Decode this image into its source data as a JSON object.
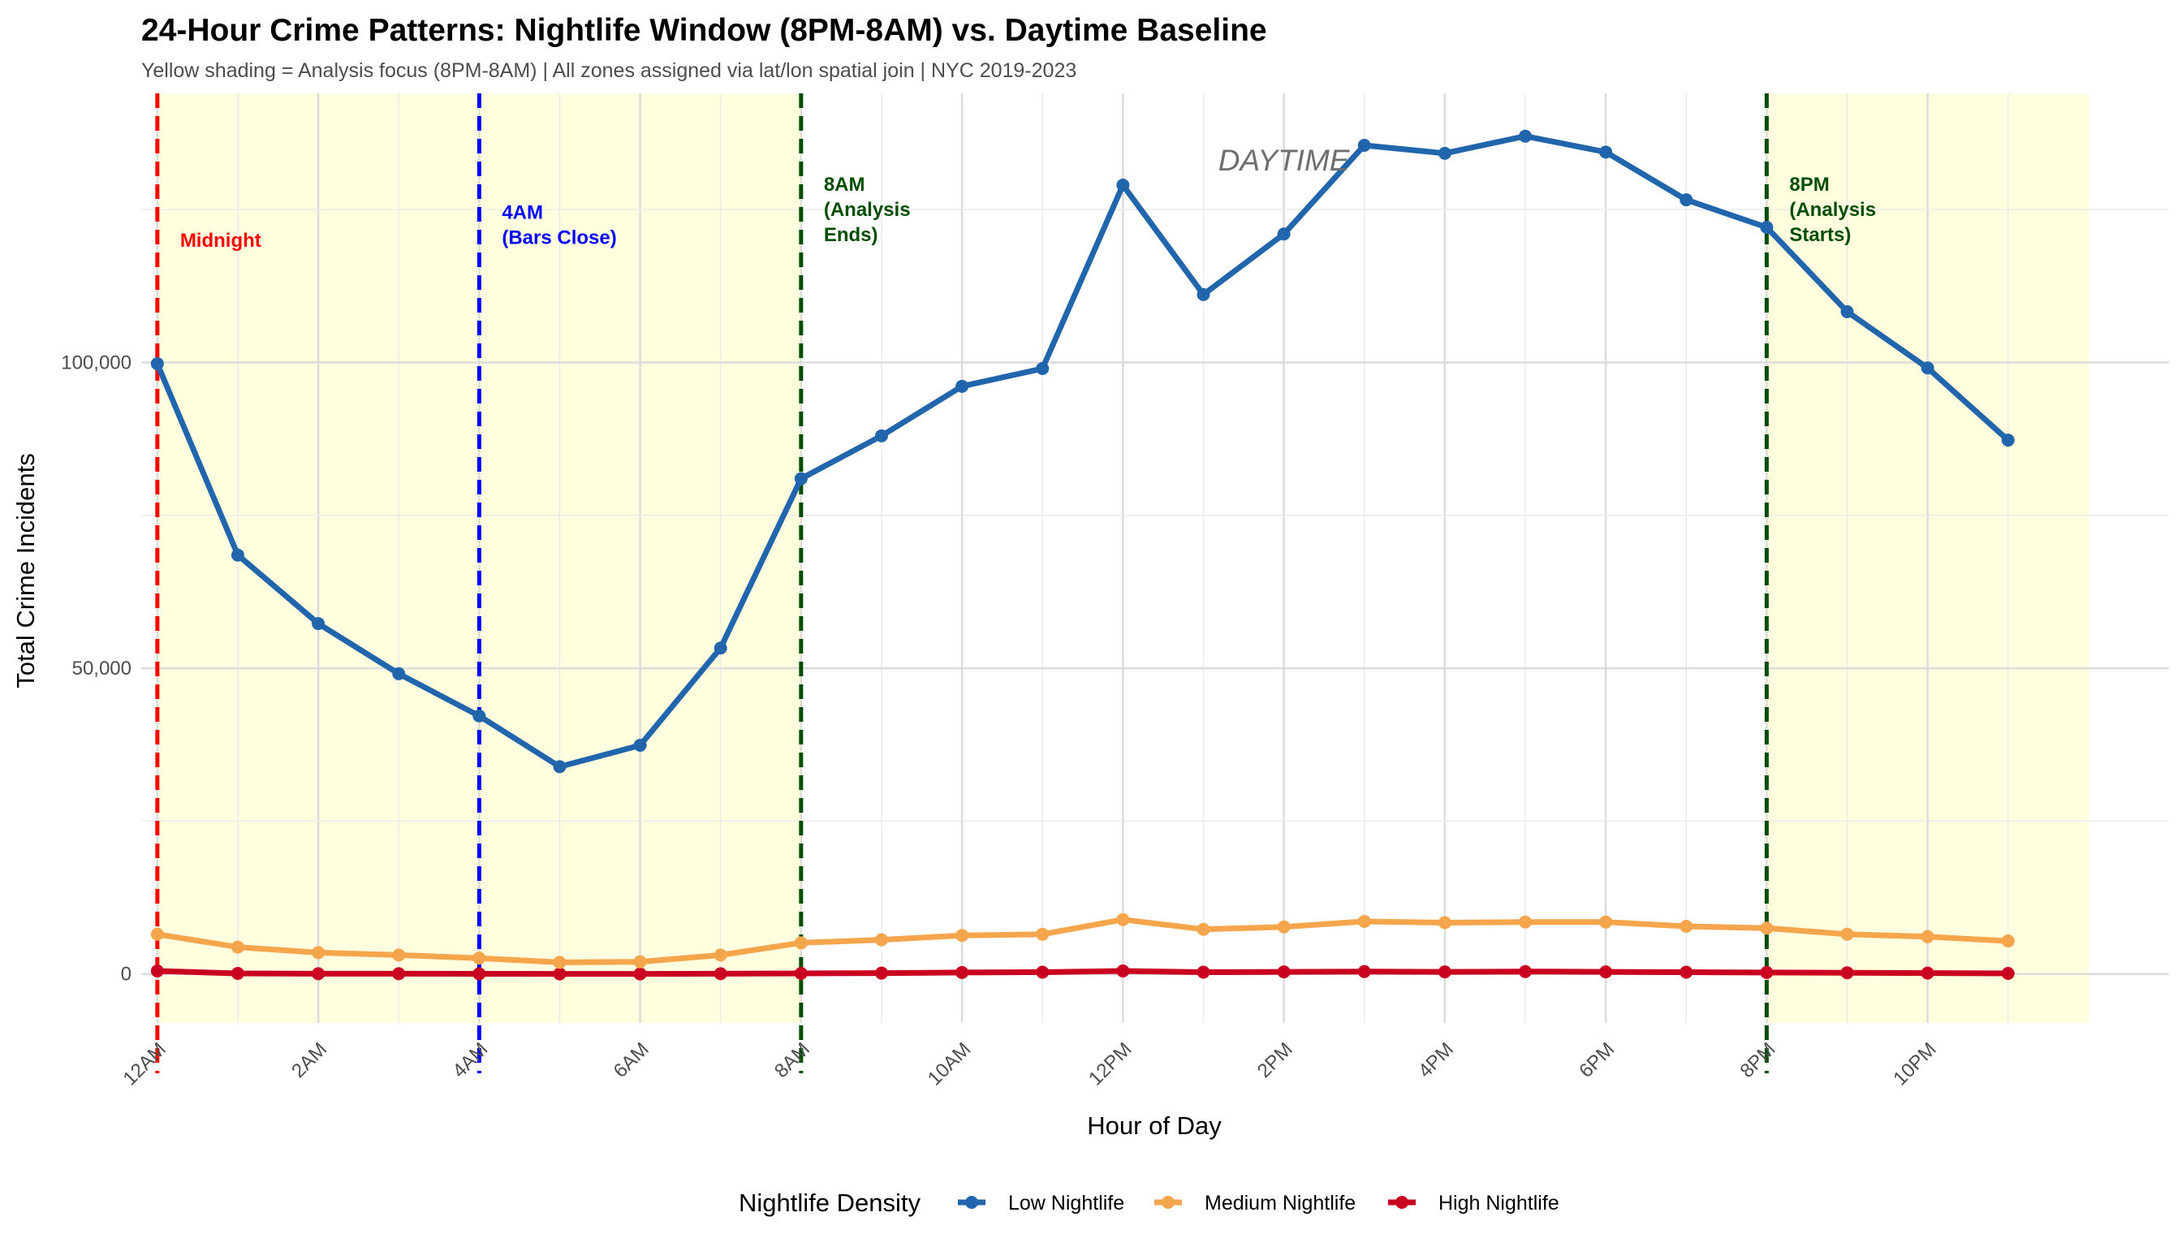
{
  "chart_data": {
    "type": "line",
    "title": "24-Hour Crime Patterns: Nightlife Window (8PM-8AM) vs. Daytime Baseline",
    "subtitle": "Yellow shading = Analysis focus (8PM-8AM) | All zones assigned via lat/lon spatial join | NYC 2019-2023",
    "xlabel": "Hour of Day",
    "ylabel": "Total Crime Incidents",
    "x": [
      0,
      1,
      2,
      3,
      4,
      5,
      6,
      7,
      8,
      9,
      10,
      11,
      12,
      13,
      14,
      15,
      16,
      17,
      18,
      19,
      20,
      21,
      22,
      23
    ],
    "xlim": [
      -0.2,
      25.0
    ],
    "ylim": [
      -8000,
      144000
    ],
    "x_ticks": [
      {
        "hour": 0,
        "label": "12AM"
      },
      {
        "hour": 2,
        "label": "2AM"
      },
      {
        "hour": 4,
        "label": "4AM"
      },
      {
        "hour": 6,
        "label": "6AM"
      },
      {
        "hour": 8,
        "label": "8AM"
      },
      {
        "hour": 10,
        "label": "10AM"
      },
      {
        "hour": 12,
        "label": "12PM"
      },
      {
        "hour": 14,
        "label": "2PM"
      },
      {
        "hour": 16,
        "label": "4PM"
      },
      {
        "hour": 18,
        "label": "6PM"
      },
      {
        "hour": 20,
        "label": "8PM"
      },
      {
        "hour": 22,
        "label": "10PM"
      }
    ],
    "y_ticks": [
      {
        "value": 0,
        "label": "0"
      },
      {
        "value": 50000,
        "label": "50,000"
      },
      {
        "value": 100000,
        "label": "100,000"
      }
    ],
    "shaded_ranges": [
      {
        "from": 0,
        "to": 8,
        "color": "#ffffe0"
      },
      {
        "from": 20,
        "to": 24,
        "color": "#ffffe0"
      }
    ],
    "vlines": [
      {
        "hour": 0,
        "color": "#ff0000",
        "label_lines": [
          "Midnight"
        ],
        "label_value": 120000
      },
      {
        "hour": 4,
        "color": "#0000ff",
        "label_lines": [
          "4AM",
          "(Bars Close)"
        ],
        "label_value": 122500
      },
      {
        "hour": 8,
        "color": "#004d00",
        "label_lines": [
          "8AM",
          "(Analysis",
          "Ends)"
        ],
        "label_value": 125000
      },
      {
        "hour": 20,
        "color": "#004d00",
        "label_lines": [
          "8PM",
          "(Analysis",
          "Starts)"
        ],
        "label_value": 125000
      }
    ],
    "text_annotation": {
      "text": "DAYTIME",
      "hour": 14,
      "value": 133000
    },
    "legend": {
      "title": "Nightlife Density",
      "position": "bottom"
    },
    "series": [
      {
        "name": "Low Nightlife",
        "color": "#2166ac",
        "values": [
          99800,
          68500,
          57300,
          49100,
          42200,
          33900,
          37400,
          53300,
          81000,
          88000,
          96100,
          99000,
          129000,
          111100,
          121000,
          135500,
          134200,
          137000,
          134400,
          126600,
          122100,
          108300,
          99100,
          87300
        ]
      },
      {
        "name": "Medium Nightlife",
        "color": "#f5a54c",
        "values": [
          6500,
          4400,
          3500,
          3100,
          2600,
          1900,
          2000,
          3100,
          5100,
          5600,
          6300,
          6500,
          8900,
          7300,
          7700,
          8600,
          8400,
          8500,
          8500,
          7800,
          7500,
          6500,
          6100,
          5400
        ]
      },
      {
        "name": "High Nightlife",
        "color": "#ca0020",
        "values": [
          500,
          100,
          50,
          50,
          30,
          20,
          20,
          50,
          100,
          150,
          250,
          300,
          500,
          300,
          350,
          400,
          350,
          400,
          350,
          300,
          250,
          200,
          150,
          100
        ]
      }
    ]
  }
}
